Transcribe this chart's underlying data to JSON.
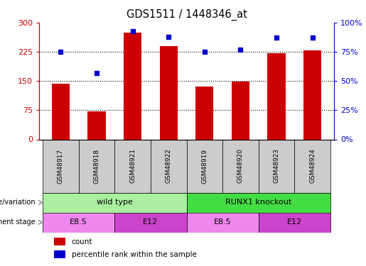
{
  "title": "GDS1511 / 1448346_at",
  "samples": [
    "GSM48917",
    "GSM48918",
    "GSM48921",
    "GSM48922",
    "GSM48919",
    "GSM48920",
    "GSM48923",
    "GSM48924"
  ],
  "counts": [
    143,
    72,
    275,
    240,
    135,
    148,
    222,
    228
  ],
  "percentiles": [
    75,
    57,
    93,
    88,
    75,
    77,
    87,
    87
  ],
  "ylim_left": [
    0,
    300
  ],
  "ylim_right": [
    0,
    100
  ],
  "yticks_left": [
    0,
    75,
    150,
    225,
    300
  ],
  "ytick_labels_left": [
    "0",
    "75",
    "150",
    "225",
    "300"
  ],
  "yticks_right": [
    0,
    25,
    50,
    75,
    100
  ],
  "ytick_labels_right": [
    "0%",
    "25%",
    "50%",
    "75%",
    "100%"
  ],
  "bar_color": "#CC0000",
  "dot_color": "#0000CC",
  "sample_box_color": "#CCCCCC",
  "genotype_groups": [
    {
      "label": "wild type",
      "start": 0,
      "end": 4,
      "color": "#AAEEA0"
    },
    {
      "label": "RUNX1 knockout",
      "start": 4,
      "end": 8,
      "color": "#44DD44"
    }
  ],
  "dev_stage_groups": [
    {
      "label": "E8.5",
      "start": 0,
      "end": 2,
      "color": "#EE88EE"
    },
    {
      "label": "E12",
      "start": 2,
      "end": 4,
      "color": "#CC44CC"
    },
    {
      "label": "E8.5",
      "start": 4,
      "end": 6,
      "color": "#EE88EE"
    },
    {
      "label": "E12",
      "start": 6,
      "end": 8,
      "color": "#CC44CC"
    }
  ],
  "bar_width": 0.5,
  "legend_items": [
    {
      "label": "count",
      "color": "#CC0000"
    },
    {
      "label": "percentile rank within the sample",
      "color": "#0000CC"
    }
  ],
  "row_label_geno": "genotype/variation",
  "row_label_dev": "development stage"
}
